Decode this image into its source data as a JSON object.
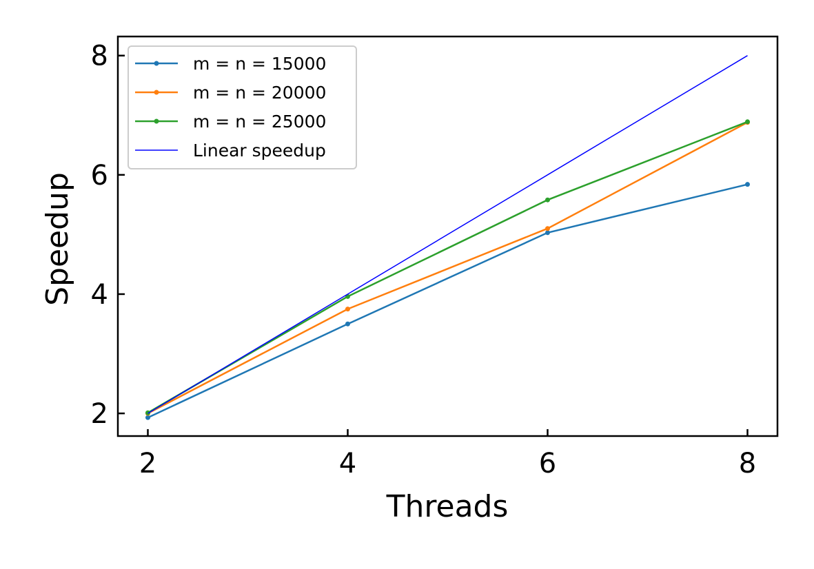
{
  "chart_data": {
    "type": "line",
    "xlabel": "Threads",
    "ylabel": "Speedup",
    "x": [
      2,
      4,
      6,
      8
    ],
    "xlim": [
      1.7,
      8.3
    ],
    "ylim": [
      1.62,
      8.32
    ],
    "xticks": [
      "2",
      "4",
      "6",
      "8"
    ],
    "yticks": [
      "2",
      "4",
      "6",
      "8"
    ],
    "grid": false,
    "legend_position": "upper-left",
    "series": [
      {
        "name": "m = n = 15000",
        "color": "#1f77b4",
        "marker": "dot",
        "values": [
          1.93,
          3.5,
          5.03,
          5.84
        ]
      },
      {
        "name": "m = n = 20000",
        "color": "#ff7f0e",
        "marker": "dot",
        "values": [
          2.0,
          3.75,
          5.1,
          6.88
        ]
      },
      {
        "name": "m = n = 25000",
        "color": "#2ca02c",
        "marker": "dot",
        "values": [
          2.01,
          3.96,
          5.58,
          6.89
        ]
      },
      {
        "name": "Linear speedup",
        "color": "#0000ff",
        "marker": "none",
        "values": [
          2,
          4,
          6,
          8
        ]
      }
    ]
  }
}
